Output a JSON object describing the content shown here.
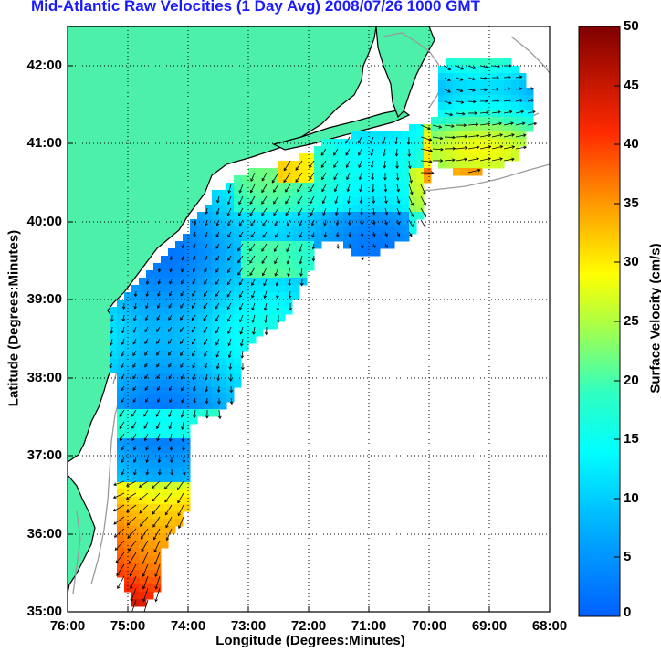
{
  "title": "Mid-Atlantic Raw Velocities (1 Day Avg) 2008/07/26 1000 GMT",
  "x_axis": {
    "label": "Longitude (Degrees:Minutes)",
    "ticks": [
      "76:00",
      "75:00",
      "74:00",
      "73:00",
      "72:00",
      "71:00",
      "70:00",
      "69:00",
      "68:00"
    ]
  },
  "y_axis": {
    "label": "Latitude (Degrees:Minutes)",
    "ticks": [
      "42:00",
      "41:00",
      "40:00",
      "39:00",
      "38:00",
      "37:00",
      "36:00",
      "35:00"
    ]
  },
  "colorbar": {
    "label": "Surface Velocity (cm/s)",
    "ticks": [
      "50",
      "45",
      "40",
      "35",
      "30",
      "25",
      "20",
      "15",
      "10",
      "5",
      "0"
    ],
    "min": 0,
    "max": 50,
    "colormap": "jet"
  },
  "colors": {
    "land": "#4cf0a8",
    "coastline": "#000000",
    "bathymetry": "#9a9a9a",
    "grid": "#000000",
    "title": "#1a1aff",
    "vectors": "#000000"
  },
  "map_extent": {
    "lon_west": -76,
    "lon_east": -68,
    "lat_south": 35,
    "lat_north": 42.5
  },
  "grid": "dotted"
}
